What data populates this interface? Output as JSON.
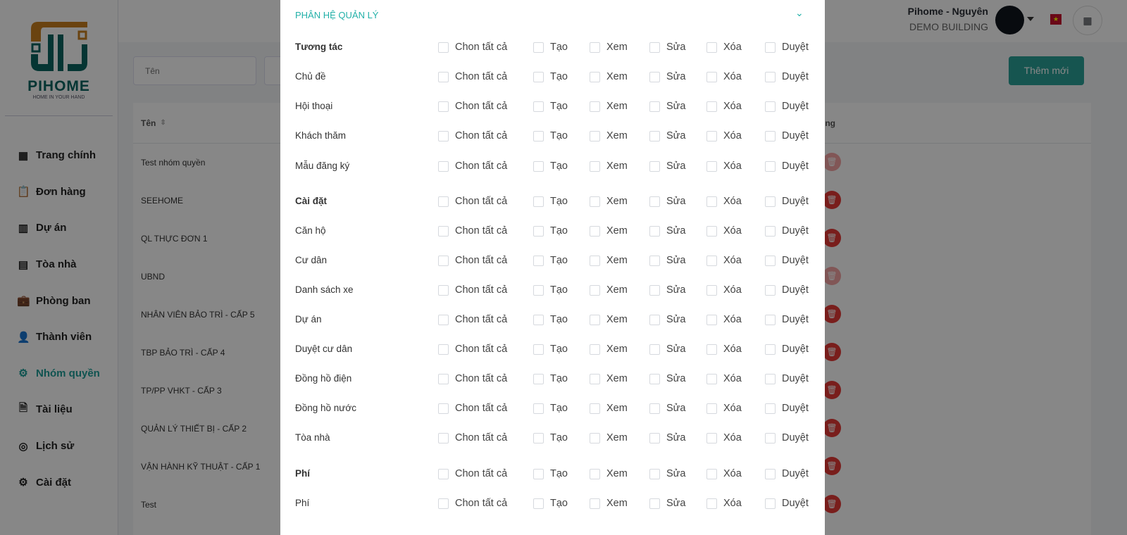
{
  "logo": {
    "word": "PIHOME",
    "tagline": "HOME IN YOUR HAND"
  },
  "sidebar": {
    "items": [
      {
        "label": "Trang chính",
        "icon": "grid-icon"
      },
      {
        "label": "Đơn hàng",
        "icon": "clipboard-icon"
      },
      {
        "label": "Dự án",
        "icon": "building-icon"
      },
      {
        "label": "Tòa nhà",
        "icon": "office-icon"
      },
      {
        "label": "Phòng ban",
        "icon": "briefcase-icon"
      },
      {
        "label": "Thành viên",
        "icon": "user-icon"
      },
      {
        "label": "Nhóm quyền",
        "icon": "gear-icon",
        "active": true
      },
      {
        "label": "Tài liệu",
        "icon": "document-icon"
      },
      {
        "label": "Lịch sử",
        "icon": "history-icon"
      },
      {
        "label": "Cài đặt",
        "icon": "settings-icon"
      }
    ]
  },
  "header": {
    "user_name": "Pihome - Nguyên",
    "building": "DEMO BUILDING"
  },
  "filters": {
    "name_placeholder": "Tên",
    "add_label": "Thêm mới"
  },
  "table": {
    "col_name": "Tên",
    "col_action_partial": "ong",
    "rows": [
      {
        "name": "Test nhóm quyền",
        "delete_disabled": true
      },
      {
        "name": "SEEHOME",
        "delete_disabled": false
      },
      {
        "name": "QL THỰC ĐƠN 1",
        "delete_disabled": false
      },
      {
        "name": "UBND",
        "delete_disabled": true
      },
      {
        "name": "NHÂN VIÊN BẢO TRÌ - CẤP 5",
        "delete_disabled": false
      },
      {
        "name": "TBP BẢO TRÌ - CẤP 4",
        "delete_disabled": false
      },
      {
        "name": "TP/PP VHKT - CẤP 3",
        "delete_disabled": false
      },
      {
        "name": "QUẢN LÝ THIẾT BỊ - CẤP 2",
        "delete_disabled": false
      },
      {
        "name": "VẬN HÀNH KỸ THUẬT - CẤP 1",
        "delete_disabled": false
      },
      {
        "name": "Test",
        "delete_disabled": false
      }
    ]
  },
  "modal": {
    "section_title": "PHÂN HỆ QUẢN LÝ",
    "permissions": [
      "Chon tất cả",
      "Tạo",
      "Xem",
      "Sửa",
      "Xóa",
      "Duyệt"
    ],
    "rows": [
      {
        "label": "Tương tác",
        "group": true
      },
      {
        "label": "Chủ đề"
      },
      {
        "label": "Hội thoại"
      },
      {
        "label": "Khách thăm"
      },
      {
        "label": "Mẫu đăng ký"
      },
      {
        "label": "Cài đặt",
        "group": true
      },
      {
        "label": "Căn hộ"
      },
      {
        "label": "Cư dân"
      },
      {
        "label": "Danh sách xe"
      },
      {
        "label": "Dự án"
      },
      {
        "label": "Duyệt cư dân"
      },
      {
        "label": "Đồng hồ điện"
      },
      {
        "label": "Đồng hồ nước"
      },
      {
        "label": "Tòa nhà"
      },
      {
        "label": "Phí",
        "group": true
      },
      {
        "label": "Phí"
      }
    ]
  },
  "colors": {
    "accent": "#2aa198",
    "danger": "#e53935"
  }
}
